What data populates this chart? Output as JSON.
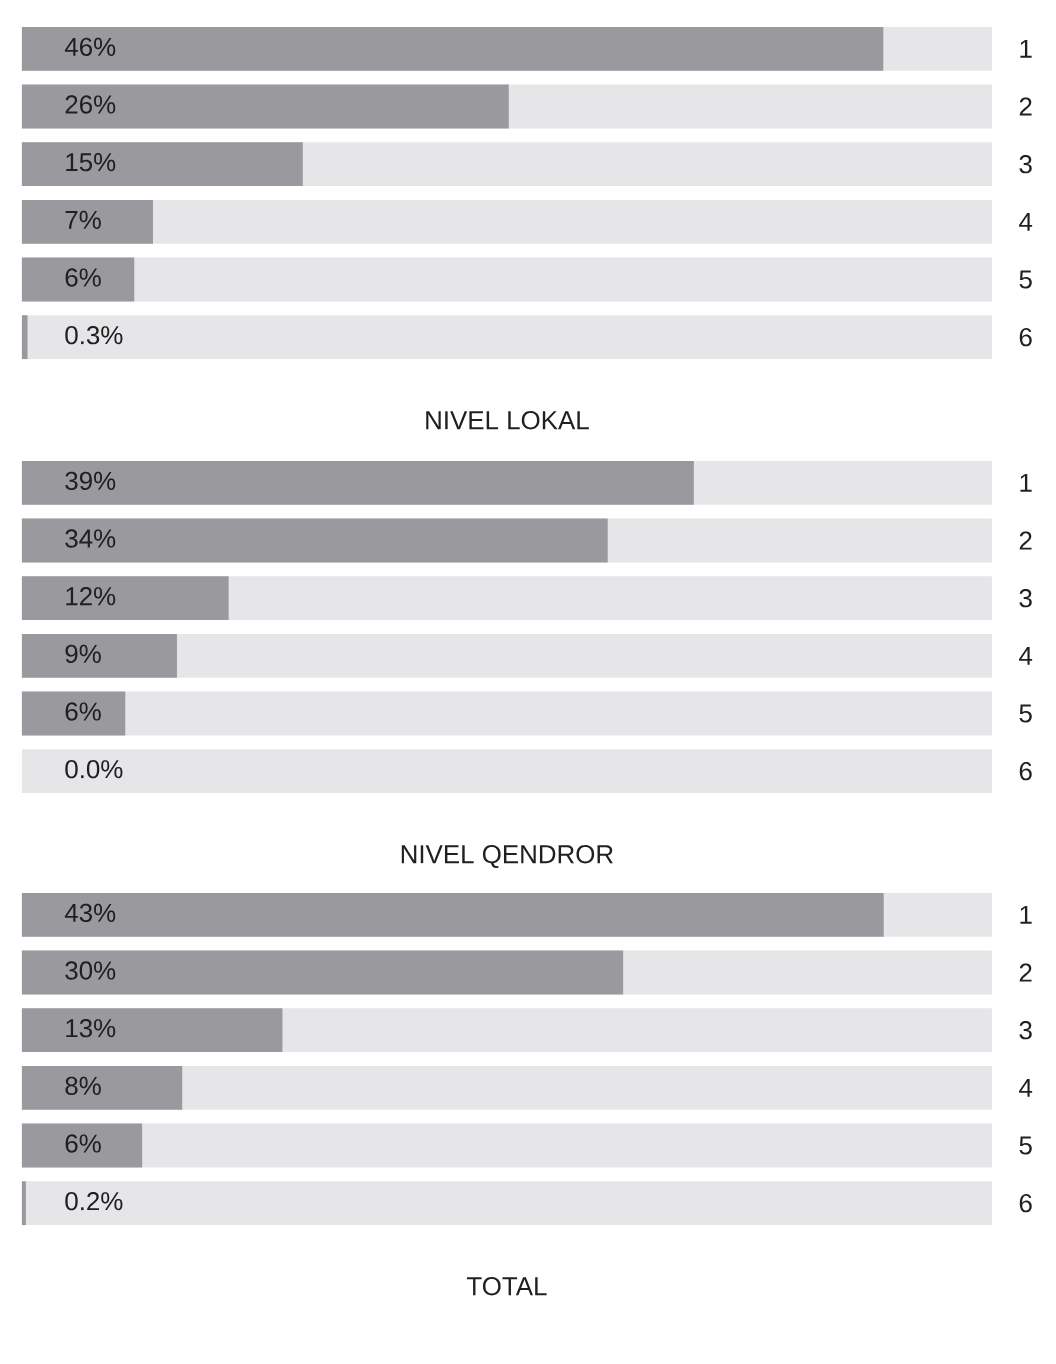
{
  "chart_data": [
    {
      "type": "bar",
      "orientation": "horizontal",
      "xlabel": "NIVEL LOKAL",
      "categories": [
        "1",
        "2",
        "3",
        "4",
        "5",
        "6"
      ],
      "values": [
        46,
        26,
        15,
        7,
        6,
        0.3
      ],
      "value_labels": [
        "46%",
        "26%",
        "15%",
        "7%",
        "6%",
        "0.3%"
      ],
      "color": "#9a9a9e",
      "grid": "y",
      "xlim": [
        0,
        51.8
      ],
      "tick_labels": "y"
    },
    {
      "type": "bar",
      "orientation": "horizontal",
      "xlabel": "NIVEL QENDROR",
      "categories": [
        "1",
        "2",
        "3",
        "4",
        "5",
        "6"
      ],
      "values": [
        39,
        34,
        12,
        9,
        6,
        0.0
      ],
      "value_labels": [
        "39%",
        "34%",
        "12%",
        "9%",
        "6%",
        "0.0%"
      ],
      "color": "#9a9a9e",
      "grid": "y",
      "xlim": [
        0,
        56.3
      ],
      "tick_labels": "y"
    },
    {
      "type": "bar",
      "orientation": "horizontal",
      "xlabel": "TOTAL",
      "categories": [
        "1",
        "2",
        "3",
        "4",
        "5",
        "6"
      ],
      "values": [
        43,
        30,
        13,
        8,
        6,
        0.2
      ],
      "value_labels": [
        "43%",
        "30%",
        "13%",
        "8%",
        "6%",
        "0.2%"
      ],
      "color": "#9a9a9e",
      "grid": "y",
      "xlim": [
        0,
        48.4
      ],
      "tick_labels": "y"
    }
  ]
}
